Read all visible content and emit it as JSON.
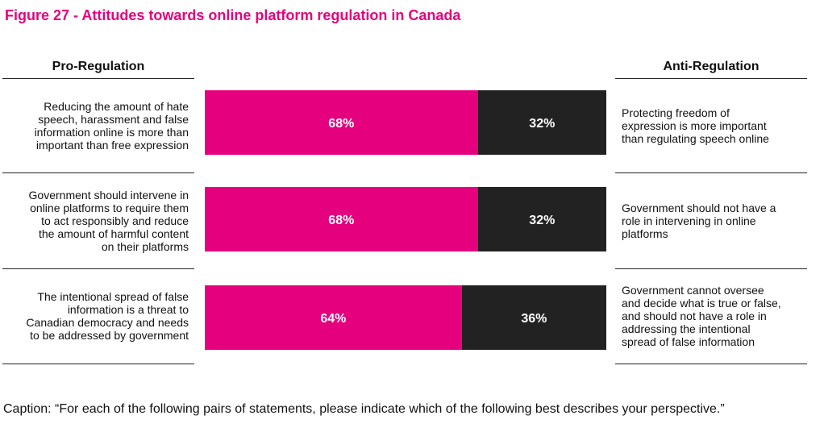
{
  "figure_title": "Figure 27 - Attitudes towards online platform regulation in Canada",
  "caption": "Caption: “For each of the following pairs of statements, please indicate which of the following best describes your perspective.”",
  "colors": {
    "pro": "#e5007d",
    "anti": "#222222",
    "title": "#e5007d",
    "bar_text": "#ffffff"
  },
  "chart_data": {
    "type": "bar",
    "orientation": "horizontal",
    "stacked": true,
    "percent": true,
    "xlim": [
      0,
      100
    ],
    "grid": false,
    "column_headers": {
      "left": "Pro-Regulation",
      "right": "Anti-Regulation"
    },
    "categories": [
      {
        "pro_statement": [
          "Reducing the amount of hate",
          "speech, harassment and false",
          "information online is more than",
          "important than free expression"
        ],
        "anti_statement": [
          "Protecting freedom of",
          "expression is more important",
          "than regulating speech online"
        ]
      },
      {
        "pro_statement": [
          "Government should intervene in",
          "online platforms to require them",
          "to act responsibly and reduce",
          "the amount of harmful content",
          "on their platforms"
        ],
        "anti_statement": [
          "Government should not have a",
          "role in intervening in online",
          "platforms"
        ]
      },
      {
        "pro_statement": [
          "The intentional spread of false",
          "information is a threat to",
          "Canadian democracy and needs",
          "to be addressed by government"
        ],
        "anti_statement": [
          "Government cannot oversee",
          "and decide what is true or false,",
          "and should not have a role in",
          "addressing the intentional",
          "spread of false information"
        ]
      }
    ],
    "series": [
      {
        "name": "Pro-Regulation",
        "values": [
          68,
          68,
          64
        ],
        "labels": [
          "68%",
          "68%",
          "64%"
        ]
      },
      {
        "name": "Anti-Regulation",
        "values": [
          32,
          32,
          36
        ],
        "labels": [
          "32%",
          "32%",
          "36%"
        ]
      }
    ]
  }
}
